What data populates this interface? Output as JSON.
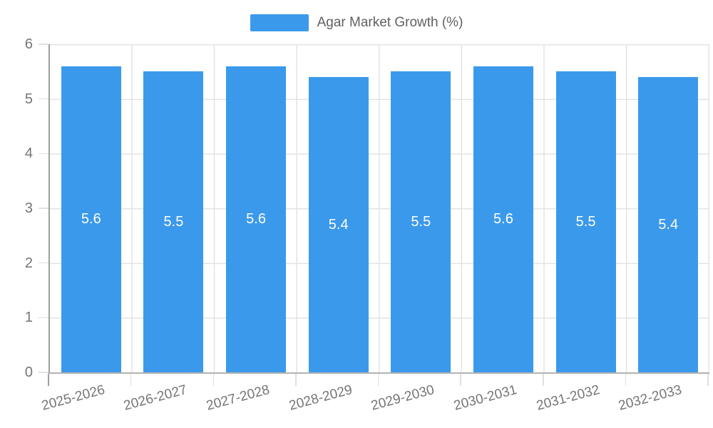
{
  "chart_data": {
    "type": "bar",
    "title": "Agar Market Growth (%)",
    "categories": [
      "2025-2026",
      "2026-2027",
      "2027-2028",
      "2028-2029",
      "2029-2030",
      "2030-2031",
      "2031-2032",
      "2032-2033"
    ],
    "series": [
      {
        "name": "Agar Market Growth (%)",
        "values": [
          5.6,
          5.5,
          5.6,
          5.4,
          5.5,
          5.6,
          5.5,
          5.4
        ],
        "color": "#3b99ec"
      }
    ],
    "value_labels": [
      5.6,
      5.5,
      5.6,
      5.4,
      5.5,
      5.6,
      5.5,
      5.4
    ],
    "xlabel": "",
    "ylabel": "",
    "ylim": [
      0,
      6
    ],
    "yticks": [
      0,
      1,
      2,
      3,
      4,
      5,
      6
    ],
    "grid": true,
    "legend_position": "top-center",
    "colors": {
      "bar": "#3b99ec",
      "grid": "#e3e3e3",
      "y_axis_line": "#9e9e9e",
      "x_axis_line": "#b3b3b3",
      "tick_label": "#757575",
      "legend_text": "#616161",
      "value_label": "#ffffff",
      "background": "#ffffff"
    }
  }
}
